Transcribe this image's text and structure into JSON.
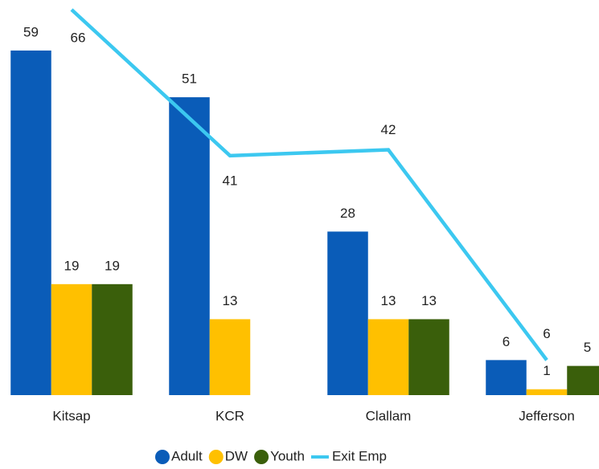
{
  "chart_data": {
    "type": "bar",
    "categories": [
      "Kitsap",
      "KCR",
      "Clallam",
      "Jefferson"
    ],
    "series": [
      {
        "name": "Adult",
        "color": "#0a5cb8",
        "values": [
          59,
          51,
          28,
          6
        ]
      },
      {
        "name": "DW",
        "color": "#ffc000",
        "values": [
          19,
          13,
          13,
          1
        ]
      },
      {
        "name": "Youth",
        "color": "#3a5f0b",
        "values": [
          19,
          null,
          13,
          5
        ]
      },
      {
        "name": "Exit Emp",
        "type": "line",
        "color": "#3cc8f0",
        "values": [
          66,
          41,
          42,
          6
        ]
      }
    ],
    "ylim": [
      0,
      66
    ],
    "grid": false,
    "legend": "bottom"
  }
}
